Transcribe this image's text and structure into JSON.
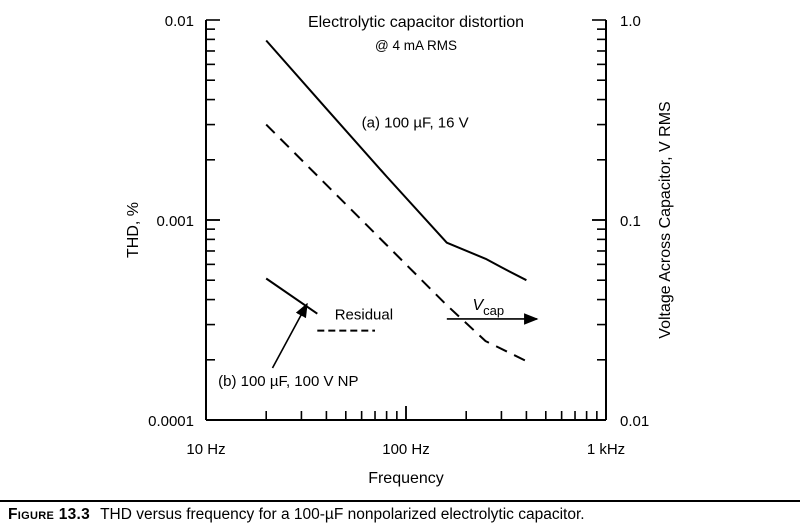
{
  "caption": {
    "label": "Figure 13.3",
    "text": "THD versus frequency for a 100-µF nonpolarized electrolytic capacitor."
  },
  "chart_data": {
    "type": "line",
    "title": "Electrolytic capacitor distortion",
    "subtitle": "@ 4 mA RMS",
    "xlabel": "Frequency",
    "ylabel": "THD, %",
    "ylabel_right": "Voltage Across Capacitor, V RMS",
    "x_scale": "log",
    "y_scale": "log",
    "x_unit": "Hz",
    "xlim": [
      10,
      1000
    ],
    "ylim": [
      0.0001,
      0.01
    ],
    "ylim_right": [
      0.01,
      1.0
    ],
    "grid": false,
    "x_tick_labels": [
      {
        "value": 10,
        "label": "10 Hz"
      },
      {
        "value": 100,
        "label": "100 Hz"
      },
      {
        "value": 1000,
        "label": "1 kHz"
      }
    ],
    "y_tick_labels": [
      {
        "value": 0.01,
        "label": "0.01"
      },
      {
        "value": 0.001,
        "label": "0.001"
      },
      {
        "value": 0.0001,
        "label": "0.0001"
      }
    ],
    "y_right_tick_labels": [
      {
        "value": 1.0,
        "label": "1.0"
      },
      {
        "value": 0.1,
        "label": "0.1"
      },
      {
        "value": 0.01,
        "label": "0.01"
      }
    ],
    "series": [
      {
        "name": "(a) 100 µF, 16 V",
        "style": "solid",
        "axis": "left",
        "points": [
          [
            20,
            0.0079
          ],
          [
            40,
            0.0036
          ],
          [
            80,
            0.00165
          ],
          [
            160,
            0.00077
          ],
          [
            250,
            0.00064
          ],
          [
            300,
            0.00058
          ],
          [
            400,
            0.0005
          ]
        ]
      },
      {
        "name": "V",
        "name_subscript": "cap",
        "style": "dashed",
        "axis": "right",
        "points": [
          [
            20,
            0.3
          ],
          [
            40,
            0.15
          ],
          [
            80,
            0.075
          ],
          [
            160,
            0.0375
          ],
          [
            250,
            0.0248
          ],
          [
            400,
            0.0197
          ]
        ]
      },
      {
        "name": "(b) 100 µF, 100 V NP",
        "style": "solid",
        "axis": "left",
        "points": [
          [
            20,
            0.00051
          ],
          [
            36,
            0.00034
          ]
        ]
      },
      {
        "name": "Residual",
        "style": "dashed",
        "axis": "left",
        "points": [
          [
            36,
            0.00028
          ],
          [
            70,
            0.00028
          ]
        ]
      }
    ],
    "annotations": [
      {
        "text": "(a) 100 µF, 16 V",
        "target_series": 0
      },
      {
        "text": "Residual",
        "target_series": 3
      },
      {
        "text": "(b) 100 µF, 100 V NP",
        "target_series": 2,
        "arrow_to": [
          32,
          0.00038
        ]
      },
      {
        "text": "V",
        "subscript": "cap",
        "target_series": 1,
        "arrow_from": [
          160,
          0.00032
        ],
        "arrow_to": [
          320,
          0.00032
        ]
      }
    ]
  }
}
